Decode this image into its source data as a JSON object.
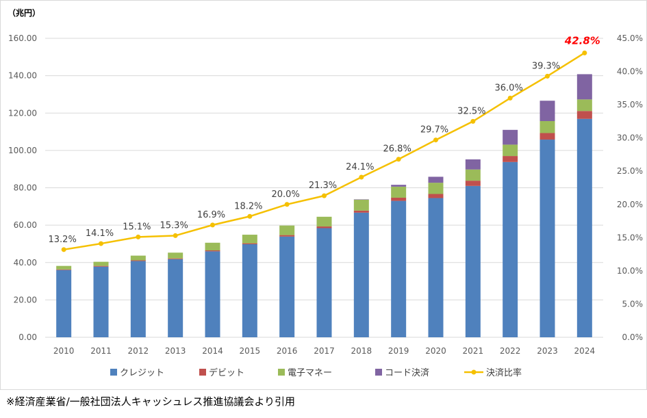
{
  "chart_data": {
    "type": "bar",
    "stacked": true,
    "unit_label": "（兆円）",
    "categories": [
      "2010",
      "2011",
      "2012",
      "2013",
      "2014",
      "2015",
      "2016",
      "2017",
      "2018",
      "2019",
      "2020",
      "2021",
      "2022",
      "2023",
      "2024"
    ],
    "series": [
      {
        "name": "クレジット",
        "color": "#4f81bd",
        "values": [
          36.0,
          37.8,
          40.8,
          41.8,
          46.0,
          49.8,
          53.9,
          58.4,
          66.7,
          73.0,
          74.5,
          81.0,
          93.8,
          105.8,
          116.9
        ]
      },
      {
        "name": "デビット",
        "color": "#c0504d",
        "values": [
          0.3,
          0.4,
          0.4,
          0.4,
          0.5,
          0.5,
          0.8,
          0.9,
          1.1,
          1.7,
          2.2,
          2.8,
          3.2,
          3.5,
          4.2
        ]
      },
      {
        "name": "電子マネー",
        "color": "#9bbb59",
        "values": [
          1.9,
          2.2,
          2.5,
          3.1,
          4.1,
          4.6,
          5.1,
          5.2,
          5.8,
          5.9,
          6.0,
          6.0,
          6.1,
          6.4,
          6.2
        ]
      },
      {
        "name": "コード決済",
        "color": "#8064a2",
        "values": [
          0,
          0,
          0,
          0,
          0,
          0,
          0,
          0,
          0.2,
          1.0,
          3.2,
          5.4,
          7.9,
          10.9,
          13.5
        ]
      }
    ],
    "line_series": {
      "name": "決済比率",
      "color": "#f5c000",
      "values": [
        13.2,
        14.1,
        15.1,
        15.3,
        16.9,
        18.2,
        20.0,
        21.3,
        24.1,
        26.8,
        29.7,
        32.5,
        36.0,
        39.3,
        42.8
      ],
      "labels": [
        "13.2%",
        "14.1%",
        "15.1%",
        "15.3%",
        "16.9%",
        "18.2%",
        "20.0%",
        "21.3%",
        "24.1%",
        "26.8%",
        "29.7%",
        "32.5%",
        "36.0%",
        "39.3%",
        "42.8%"
      ],
      "highlight_color": "#ff0000"
    },
    "y_left": {
      "min": 0,
      "max": 160,
      "step": 20,
      "tick_labels": [
        "0.00",
        "20.00",
        "40.00",
        "60.00",
        "80.00",
        "100.00",
        "120.00",
        "140.00",
        "160.00"
      ]
    },
    "y_right": {
      "min": 0,
      "max": 45,
      "step": 5,
      "tick_labels": [
        "0.0%",
        "5.0%",
        "10.0%",
        "15.0%",
        "20.0%",
        "25.0%",
        "30.0%",
        "35.0%",
        "40.0%",
        "45.0%"
      ]
    },
    "grid": true,
    "legend_position": "bottom"
  },
  "source_note": "※経済産業省/一般社団法人キャッシュレス推進協議会より引用"
}
